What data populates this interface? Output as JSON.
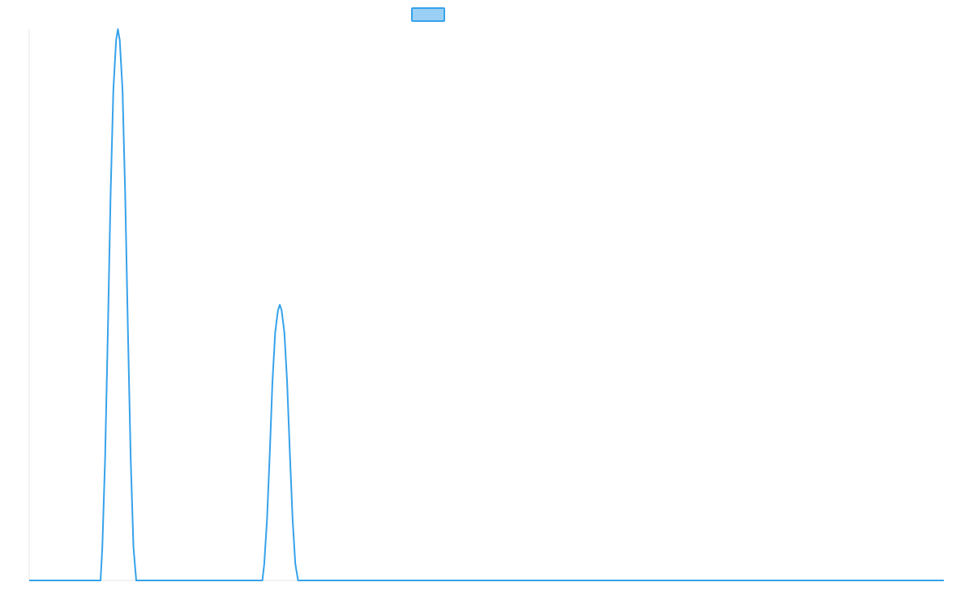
{
  "chart_data": {
    "type": "line",
    "title": "",
    "xlabel": "",
    "ylabel": "",
    "x_range": [
      0,
      1
    ],
    "ylim": [
      0,
      1
    ],
    "grid": false,
    "legend": {
      "position": "top-center",
      "entries": [
        {
          "label": "",
          "color": "#36a2eb",
          "fill": "#9ad0f5"
        }
      ]
    },
    "series": [
      {
        "color": "#36a2eb",
        "points": [
          [
            0.0,
            0.0
          ],
          [
            0.078,
            0.0
          ],
          [
            0.08,
            0.06
          ],
          [
            0.083,
            0.22
          ],
          [
            0.086,
            0.45
          ],
          [
            0.089,
            0.7
          ],
          [
            0.092,
            0.89
          ],
          [
            0.095,
            0.98
          ],
          [
            0.097,
            1.0
          ],
          [
            0.099,
            0.98
          ],
          [
            0.102,
            0.89
          ],
          [
            0.105,
            0.7
          ],
          [
            0.108,
            0.45
          ],
          [
            0.111,
            0.22
          ],
          [
            0.114,
            0.06
          ],
          [
            0.117,
            0.0
          ],
          [
            0.255,
            0.0
          ],
          [
            0.257,
            0.03
          ],
          [
            0.26,
            0.11
          ],
          [
            0.263,
            0.23
          ],
          [
            0.266,
            0.36
          ],
          [
            0.269,
            0.45
          ],
          [
            0.272,
            0.49
          ],
          [
            0.274,
            0.5
          ],
          [
            0.276,
            0.49
          ],
          [
            0.279,
            0.45
          ],
          [
            0.282,
            0.36
          ],
          [
            0.285,
            0.23
          ],
          [
            0.288,
            0.11
          ],
          [
            0.291,
            0.03
          ],
          [
            0.294,
            0.0
          ],
          [
            1.0,
            0.0
          ]
        ]
      }
    ]
  }
}
